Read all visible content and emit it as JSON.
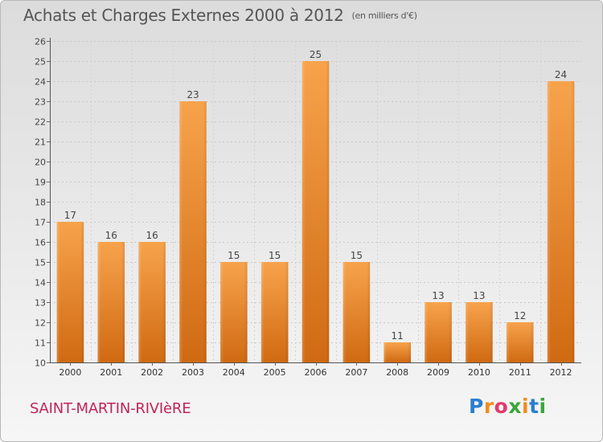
{
  "title": "Achats et Charges Externes 2000 à 2012",
  "subtitle": "(en milliers d'€)",
  "location": "SAINT-MARTIN-RIVIèRE",
  "logo": {
    "text": "Proxiti",
    "letter_colors": [
      "#2b7fd0",
      "#f08c1e",
      "#e23a6b",
      "#3aa63a",
      "#f08c1e",
      "#2b7fd0",
      "#3aa63a"
    ]
  },
  "colors": {
    "bar_top": "#f7a34c",
    "bar_bottom": "#d06a12",
    "title": "#555555",
    "location": "#c0245a"
  },
  "chart_data": {
    "type": "bar",
    "title": "Achats et Charges Externes 2000 à 2012",
    "subtitle": "(en milliers d'€)",
    "categories": [
      "2000",
      "2001",
      "2002",
      "2003",
      "2004",
      "2005",
      "2006",
      "2007",
      "2008",
      "2009",
      "2010",
      "2011",
      "2012"
    ],
    "values": [
      17,
      16,
      16,
      23,
      15,
      15,
      25,
      15,
      11,
      13,
      13,
      12,
      24
    ],
    "xlabel": "",
    "ylabel": "",
    "ylim": [
      10,
      26
    ],
    "yticks": [
      "10",
      "11",
      "12",
      "13",
      "14",
      "15",
      "16",
      "17",
      "18",
      "19",
      "20",
      "21",
      "22",
      "23",
      "24",
      "25",
      "26"
    ],
    "grid": true,
    "data_labels": true
  }
}
